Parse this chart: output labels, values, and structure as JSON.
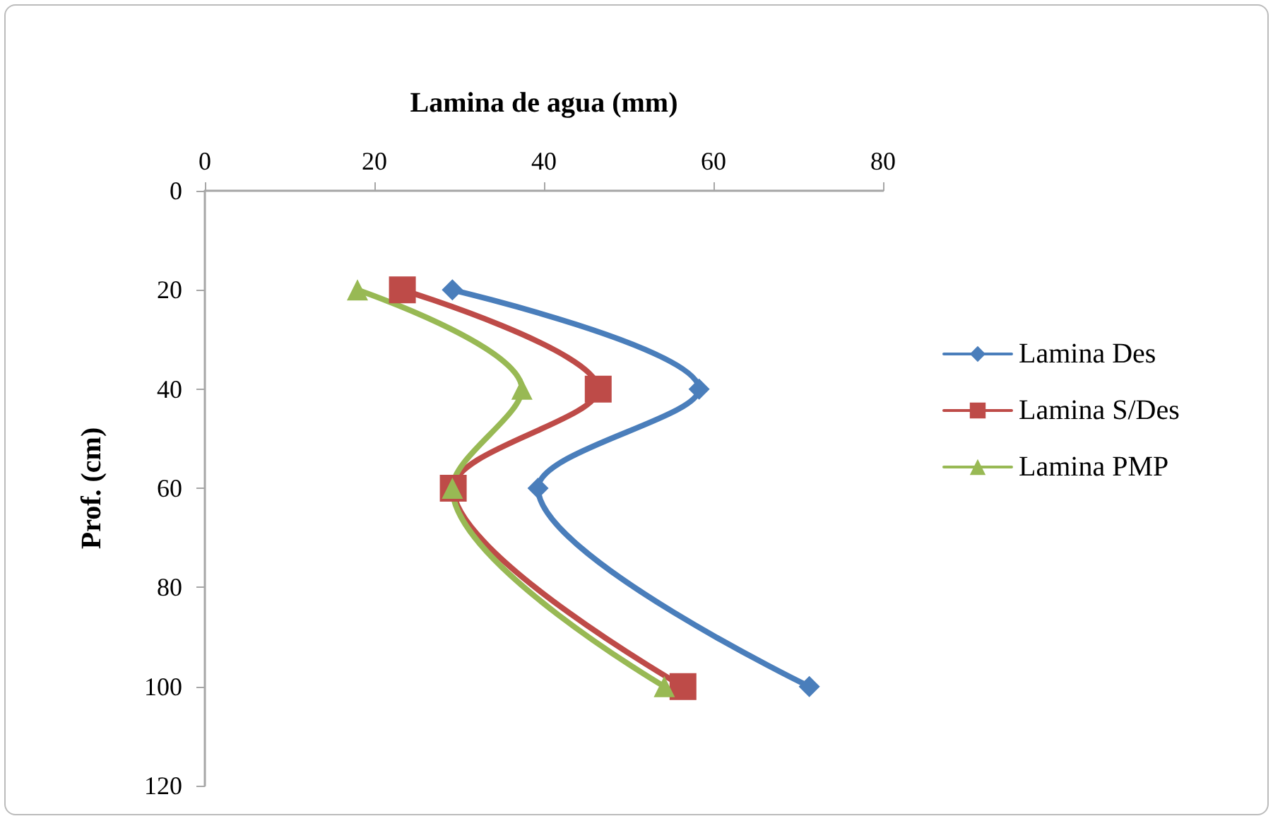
{
  "chart_data": {
    "type": "line",
    "xlabel": "Lamina de agua (mm)",
    "ylabel": "Prof. (cm)",
    "xlim": [
      0,
      80
    ],
    "xticks": [
      0,
      20,
      40,
      60,
      80
    ],
    "ylim": [
      120,
      0
    ],
    "yticks": [
      0,
      20,
      40,
      60,
      80,
      100,
      120
    ],
    "grid": false,
    "legend": "right",
    "line_style": "solid",
    "series": [
      {
        "name": "Lamina Des",
        "color": "#4a7ebb",
        "marker": "diamond",
        "x": [
          29.2,
          58.3,
          39.3,
          71.3
        ],
        "values": [
          20,
          40,
          60,
          100
        ]
      },
      {
        "name": "Lamina S/Des",
        "color": "#be4b48",
        "marker": "square",
        "x": [
          23.3,
          46.4,
          29.3,
          56.4
        ],
        "values": [
          20,
          40,
          60,
          100
        ]
      },
      {
        "name": "Lamina PMP",
        "color": "#98b954",
        "marker": "triangle",
        "x": [
          18,
          37.4,
          29.2,
          54.2
        ],
        "values": [
          20,
          40,
          60,
          100
        ]
      }
    ]
  }
}
